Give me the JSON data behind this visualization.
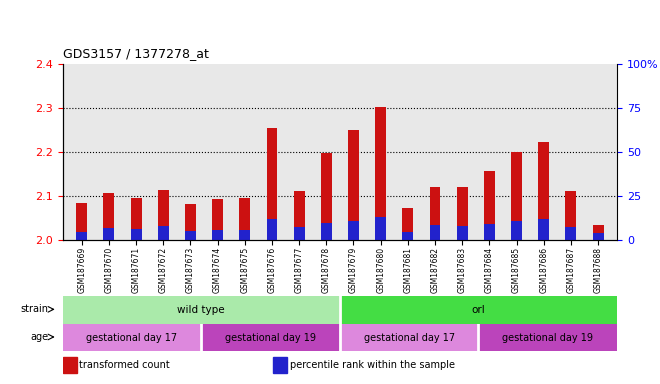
{
  "title": "GDS3157 / 1377278_at",
  "samples": [
    "GSM187669",
    "GSM187670",
    "GSM187671",
    "GSM187672",
    "GSM187673",
    "GSM187674",
    "GSM187675",
    "GSM187676",
    "GSM187677",
    "GSM187678",
    "GSM187679",
    "GSM187680",
    "GSM187681",
    "GSM187682",
    "GSM187683",
    "GSM187684",
    "GSM187685",
    "GSM187686",
    "GSM187687",
    "GSM187688"
  ],
  "transformed_count": [
    2.085,
    2.107,
    2.097,
    2.113,
    2.082,
    2.093,
    2.097,
    2.255,
    2.112,
    2.197,
    2.249,
    2.302,
    2.074,
    2.122,
    2.121,
    2.158,
    2.2,
    2.222,
    2.112,
    2.035
  ],
  "percentile_rank": [
    5.0,
    7.0,
    6.5,
    8.0,
    5.5,
    6.0,
    6.0,
    12.0,
    7.5,
    10.0,
    11.0,
    13.0,
    5.0,
    8.5,
    8.0,
    9.5,
    11.0,
    12.0,
    7.5,
    4.0
  ],
  "base": 2.0,
  "ylim_left": [
    2.0,
    2.4
  ],
  "ylim_right": [
    0,
    100
  ],
  "yticks_left": [
    2.0,
    2.1,
    2.2,
    2.3,
    2.4
  ],
  "yticks_right": [
    0,
    25,
    50,
    75,
    100
  ],
  "ytick_labels_right": [
    "0",
    "25",
    "50",
    "75",
    "100%"
  ],
  "bar_color_red": "#cc1111",
  "bar_color_blue": "#2222cc",
  "bg_color": "#e8e8e8",
  "strain_groups": [
    {
      "label": "wild type",
      "start": 0,
      "end": 10,
      "color": "#aaeaaa"
    },
    {
      "label": "orl",
      "start": 10,
      "end": 20,
      "color": "#44dd44"
    }
  ],
  "age_groups": [
    {
      "label": "gestational day 17",
      "start": 0,
      "end": 5,
      "color": "#dd88dd"
    },
    {
      "label": "gestational day 19",
      "start": 5,
      "end": 10,
      "color": "#bb44bb"
    },
    {
      "label": "gestational day 17",
      "start": 10,
      "end": 15,
      "color": "#dd88dd"
    },
    {
      "label": "gestational day 19",
      "start": 15,
      "end": 20,
      "color": "#bb44bb"
    }
  ],
  "legend_items": [
    {
      "label": "transformed count",
      "color": "#cc1111"
    },
    {
      "label": "percentile rank within the sample",
      "color": "#2222cc"
    }
  ],
  "bar_width": 0.4,
  "grid_lines": [
    2.1,
    2.2,
    2.3
  ]
}
